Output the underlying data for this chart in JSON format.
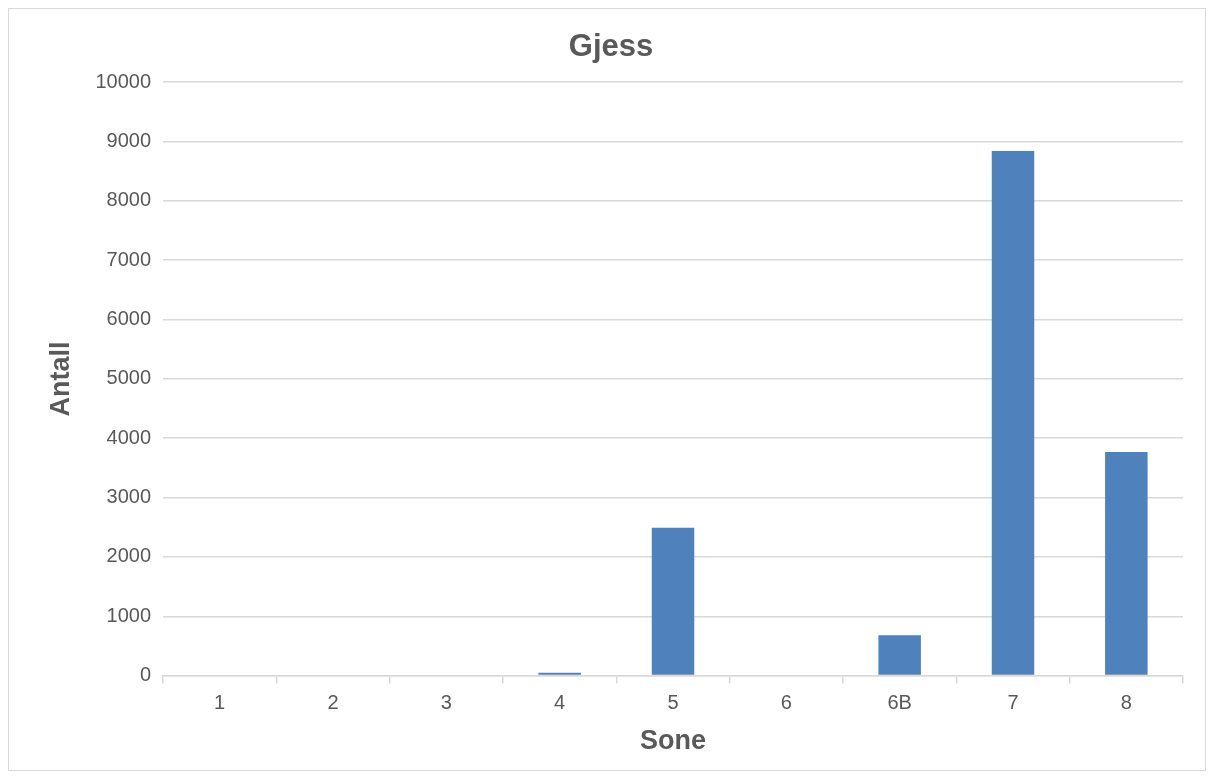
{
  "chart_data": {
    "type": "bar",
    "title": "Gjess",
    "xlabel": "Sone",
    "ylabel": "Antall",
    "categories": [
      "1",
      "2",
      "3",
      "4",
      "5",
      "6",
      "6B",
      "7",
      "8"
    ],
    "values": [
      0,
      0,
      0,
      50,
      2490,
      0,
      680,
      8840,
      3770
    ],
    "color": "#4f81bd",
    "ylim": [
      0,
      10000
    ],
    "yticks": [
      0,
      1000,
      2000,
      3000,
      4000,
      5000,
      6000,
      7000,
      8000,
      9000,
      10000
    ],
    "grid": "y",
    "legend": false
  }
}
